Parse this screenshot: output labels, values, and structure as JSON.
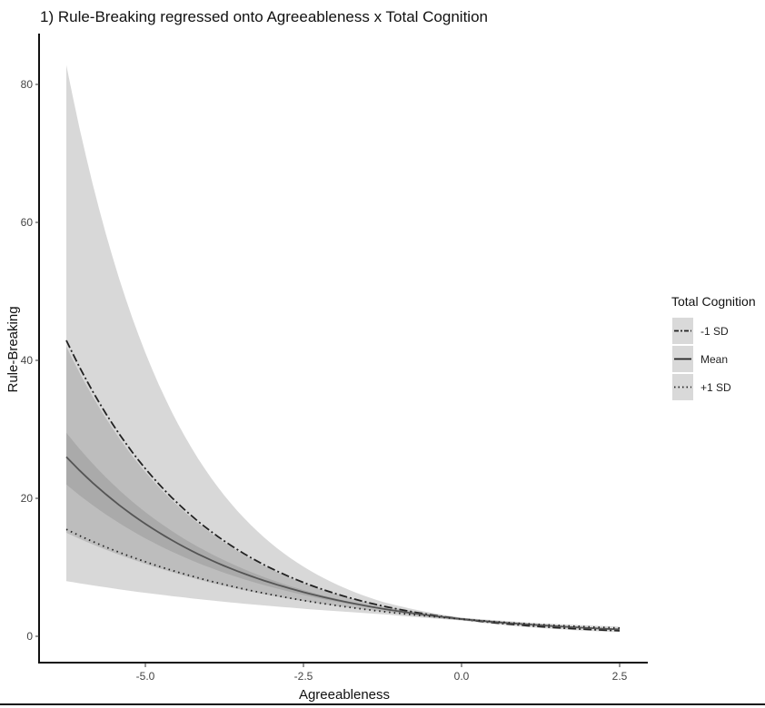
{
  "chart_data": {
    "type": "line",
    "title": "1) Rule-Breaking regressed onto Agreeableness x Total Cognition",
    "xlabel": "Agreeableness",
    "ylabel": "Rule-Breaking",
    "xlim": [
      -6.5,
      2.9
    ],
    "ylim": [
      -2,
      84
    ],
    "xticks": [
      -5.0,
      -2.5,
      0.0,
      2.5
    ],
    "xtick_labels": [
      "-5.0",
      "-2.5",
      "0.0",
      "2.5"
    ],
    "yticks": [
      0,
      20,
      40,
      60,
      80
    ],
    "ytick_labels": [
      "0",
      "20",
      "40",
      "60",
      "80"
    ],
    "grid": false,
    "legend": {
      "title": "Total Cognition",
      "position": "right"
    },
    "x": [
      -6.25,
      -5.0,
      -3.75,
      -2.5,
      -1.25,
      0.0,
      1.25,
      2.5
    ],
    "series": [
      {
        "name": "-1 SD",
        "linestyle": "dashdot",
        "values": [
          42.9,
          24.3,
          13.8,
          7.8,
          4.4,
          2.5,
          1.4,
          0.8
        ],
        "lower": [
          15.0,
          10.5,
          7.3,
          5.1,
          3.6,
          2.3,
          1.2,
          0.6
        ],
        "upper": [
          82.8,
          41.1,
          20.4,
          10.1,
          5.0,
          2.7,
          1.7,
          1.1
        ]
      },
      {
        "name": "Mean",
        "linestyle": "solid",
        "values": [
          26.0,
          16.3,
          10.2,
          6.4,
          4.0,
          2.5,
          1.6,
          1.0
        ],
        "lower": [
          22.0,
          14.2,
          9.2,
          6.0,
          3.9,
          2.4,
          1.5,
          0.9
        ],
        "upper": [
          29.5,
          18.0,
          11.0,
          6.7,
          4.1,
          2.6,
          1.7,
          1.1
        ]
      },
      {
        "name": "+1 SD",
        "linestyle": "dotted",
        "values": [
          15.5,
          10.8,
          7.5,
          5.2,
          3.6,
          2.5,
          1.7,
          1.2
        ],
        "lower": [
          8.0,
          6.3,
          5.0,
          4.0,
          3.2,
          2.3,
          1.5,
          1.0
        ],
        "upper": [
          42.0,
          23.8,
          13.6,
          7.7,
          4.4,
          2.7,
          1.9,
          1.4
        ]
      }
    ],
    "colors": {
      "ribbon": "#7f7f7f",
      "line": "#222222",
      "legend_key": "#d9d9d9"
    }
  }
}
